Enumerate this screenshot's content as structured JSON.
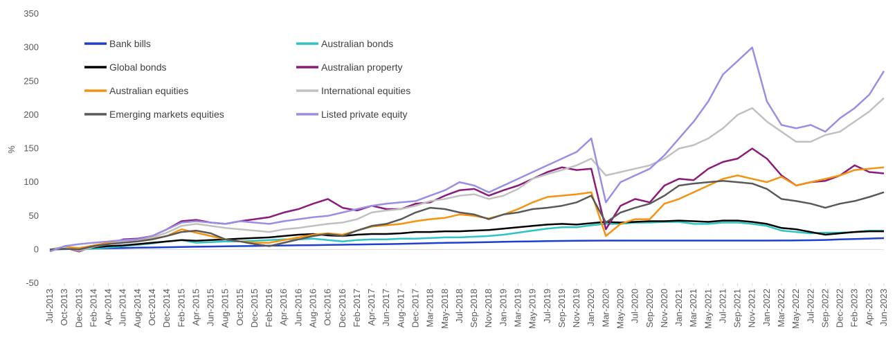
{
  "chart_data": {
    "type": "line",
    "title": "",
    "xlabel": "",
    "ylabel": "%",
    "ylim": [
      -50,
      350
    ],
    "yticks": [
      "-50",
      "0",
      "50",
      "100",
      "150",
      "200",
      "250",
      "300",
      "350"
    ],
    "grid": false,
    "legend_position": "top-left",
    "x": [
      "Jul-2013",
      "Oct-2013",
      "Dec-2013",
      "Feb-2014",
      "Apr-2014",
      "Jun-2014",
      "Aug-2014",
      "Oct-2014",
      "Dec-2014",
      "Feb-2015",
      "Apr-2015",
      "Jun-2015",
      "Aug-2015",
      "Oct-2015",
      "Dec-2015",
      "Feb-2016",
      "Apr-2016",
      "Jun-2016",
      "Aug-2016",
      "Oct-2016",
      "Dec-2016",
      "Feb-2017",
      "Apr-2017",
      "Jun-2017",
      "Aug-2017",
      "Dec-2017",
      "Mar-2018",
      "May-2018",
      "Jul-2018",
      "Sep-2018",
      "Nov-2018",
      "Jan-2019",
      "Mar-2019",
      "May-2019",
      "Jul-2019",
      "Sep-2019",
      "Nov-2019",
      "Jan-2020",
      "Mar-2020",
      "May-2020",
      "Jul-2020",
      "Sep-2020",
      "Nov-2020",
      "Jan-2021",
      "Mar-2021",
      "May-2021",
      "Jul-2021",
      "Sep-2021",
      "Nov-2021",
      "Jan-2022",
      "Mar-2022",
      "May-2022",
      "Jul-2022",
      "Sep-2022",
      "Dec-2022",
      "Feb-2023",
      "Apr-2023",
      "Jun-2023"
    ],
    "series": [
      {
        "name": "Bank bills",
        "color": "#1f3fcf",
        "values": [
          0,
          0.5,
          0.9,
          1.3,
          1.8,
          2.2,
          2.6,
          3,
          3.4,
          3.8,
          4.1,
          4.4,
          4.7,
          5,
          5.3,
          5.6,
          5.9,
          6.2,
          6.5,
          6.8,
          7.1,
          7.4,
          7.7,
          8,
          8.3,
          8.9,
          9.4,
          9.8,
          10.2,
          10.6,
          11,
          11.4,
          11.8,
          12.1,
          12.4,
          12.7,
          12.9,
          13.1,
          13.2,
          13.2,
          13.2,
          13.2,
          13.2,
          13.2,
          13.2,
          13.2,
          13.2,
          13.2,
          13.2,
          13.2,
          13.3,
          13.4,
          13.8,
          14.2,
          15,
          15.6,
          16.2,
          16.8
        ]
      },
      {
        "name": "Australian bonds",
        "color": "#2ec4c4",
        "values": [
          0,
          1,
          0,
          1,
          3,
          5,
          7,
          9,
          12,
          14,
          10,
          11,
          12,
          12,
          13,
          14,
          15,
          15,
          16,
          14,
          12,
          14,
          15,
          15,
          16,
          16,
          17,
          18,
          18,
          19,
          20,
          22,
          25,
          28,
          31,
          33,
          33,
          36,
          38,
          38,
          40,
          40,
          41,
          41,
          38,
          38,
          40,
          40,
          38,
          35,
          28,
          26,
          24,
          25,
          25,
          26,
          28,
          28
        ]
      },
      {
        "name": "Global bonds",
        "color": "#000000",
        "values": [
          0,
          1,
          2,
          3,
          5,
          6,
          8,
          10,
          12,
          14,
          13,
          14,
          15,
          16,
          17,
          18,
          20,
          22,
          23,
          21,
          20,
          22,
          23,
          23,
          24,
          26,
          26,
          27,
          27,
          28,
          29,
          31,
          33,
          35,
          37,
          38,
          37,
          39,
          41,
          40,
          41,
          42,
          42,
          43,
          42,
          41,
          43,
          43,
          41,
          38,
          32,
          30,
          26,
          22,
          24,
          26,
          27,
          27
        ]
      },
      {
        "name": "Australian property",
        "color": "#8b1a7a",
        "values": [
          -2,
          3,
          -3,
          5,
          8,
          15,
          16,
          20,
          30,
          42,
          44,
          40,
          38,
          42,
          45,
          48,
          55,
          60,
          68,
          75,
          62,
          58,
          65,
          60,
          60,
          68,
          70,
          80,
          88,
          90,
          80,
          88,
          95,
          105,
          115,
          122,
          118,
          120,
          30,
          65,
          75,
          70,
          95,
          105,
          103,
          120,
          130,
          135,
          150,
          135,
          110,
          95,
          100,
          102,
          110,
          125,
          115,
          113
        ]
      },
      {
        "name": "Australian equities",
        "color": "#f5920f",
        "values": [
          0,
          4,
          2,
          6,
          10,
          14,
          12,
          16,
          20,
          30,
          25,
          20,
          15,
          12,
          10,
          10,
          14,
          18,
          22,
          24,
          22,
          28,
          34,
          36,
          38,
          42,
          45,
          47,
          52,
          50,
          46,
          52,
          60,
          70,
          78,
          80,
          82,
          85,
          20,
          38,
          45,
          45,
          68,
          75,
          85,
          95,
          105,
          110,
          105,
          100,
          108,
          95,
          100,
          105,
          110,
          118,
          120,
          122
        ]
      },
      {
        "name": "International equities",
        "color": "#c0c0c0",
        "values": [
          0,
          3,
          -2,
          4,
          8,
          12,
          15,
          18,
          25,
          35,
          38,
          35,
          32,
          30,
          28,
          26,
          30,
          32,
          35,
          38,
          40,
          45,
          55,
          58,
          60,
          65,
          72,
          75,
          80,
          82,
          75,
          80,
          90,
          105,
          112,
          118,
          125,
          135,
          110,
          115,
          120,
          125,
          135,
          150,
          155,
          165,
          180,
          200,
          210,
          190,
          175,
          160,
          160,
          170,
          175,
          190,
          205,
          225
        ]
      },
      {
        "name": "Emerging markets equities",
        "color": "#595959",
        "values": [
          0,
          1,
          0,
          5,
          8,
          10,
          12,
          15,
          20,
          26,
          28,
          24,
          15,
          12,
          8,
          5,
          10,
          15,
          20,
          23,
          20,
          28,
          35,
          38,
          45,
          55,
          62,
          60,
          55,
          52,
          45,
          52,
          55,
          60,
          62,
          65,
          70,
          80,
          40,
          55,
          62,
          68,
          80,
          95,
          98,
          100,
          102,
          100,
          98,
          90,
          75,
          72,
          68,
          62,
          68,
          72,
          78,
          85
        ]
      },
      {
        "name": "Listed private equity",
        "color": "#9a8de6",
        "values": [
          -3,
          5,
          8,
          10,
          12,
          14,
          15,
          20,
          30,
          40,
          42,
          40,
          38,
          42,
          40,
          38,
          42,
          45,
          48,
          50,
          55,
          60,
          65,
          68,
          70,
          72,
          80,
          88,
          100,
          95,
          85,
          95,
          105,
          115,
          125,
          135,
          145,
          165,
          70,
          100,
          110,
          120,
          140,
          165,
          190,
          220,
          260,
          280,
          300,
          220,
          185,
          180,
          185,
          175,
          195,
          210,
          230,
          265
        ]
      }
    ]
  },
  "legend": {
    "items": [
      "Bank bills",
      "Australian bonds",
      "Global bonds",
      "Australian property",
      "Australian equities",
      "International equities",
      "Emerging markets equities",
      "Listed private equity"
    ]
  }
}
